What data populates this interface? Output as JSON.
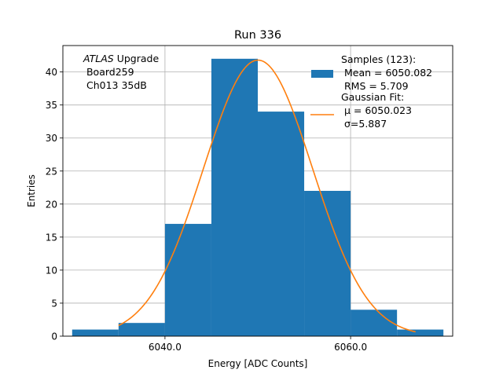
{
  "chart_data": {
    "type": "bar",
    "title": "Run 336",
    "xlabel": "Energy [ADC Counts]",
    "ylabel": "Entries",
    "xlim": [
      6029.0,
      6071.0
    ],
    "ylim": [
      0,
      44
    ],
    "grid": true,
    "x_ticks": [
      6040.0,
      6060.0
    ],
    "x_tick_labels": [
      "6040.0",
      "6060.0"
    ],
    "y_ticks": [
      0,
      5,
      10,
      15,
      20,
      25,
      30,
      35,
      40
    ],
    "y_tick_labels": [
      "0",
      "5",
      "10",
      "15",
      "20",
      "25",
      "30",
      "35",
      "40"
    ],
    "bins": [
      {
        "x0": 6030,
        "x1": 6035,
        "count": 1
      },
      {
        "x0": 6035,
        "x1": 6040,
        "count": 2
      },
      {
        "x0": 6040,
        "x1": 6045,
        "count": 17
      },
      {
        "x0": 6045,
        "x1": 6050,
        "count": 42
      },
      {
        "x0": 6050,
        "x1": 6055,
        "count": 34
      },
      {
        "x0": 6055,
        "x1": 6060,
        "count": 22
      },
      {
        "x0": 6060,
        "x1": 6065,
        "count": 4
      },
      {
        "x0": 6065,
        "x1": 6070,
        "count": 1
      }
    ],
    "fit": {
      "type": "gaussian",
      "mu": 6050.023,
      "sigma": 5.887,
      "amplitude": 41.8,
      "x_range": [
        6035,
        6067
      ]
    },
    "annotation_lines": [
      {
        "italic": "ATLAS",
        "rest": " Upgrade"
      },
      {
        "italic": "",
        "rest": " Board259"
      },
      {
        "italic": "",
        "rest": " Ch013 35dB"
      }
    ],
    "legend": {
      "position": "top-right",
      "entries": [
        {
          "kind": "patch",
          "lines": [
            "Samples (123):",
            " Mean = 6050.082",
            " RMS = 5.709"
          ]
        },
        {
          "kind": "line",
          "lines": [
            "Gaussian Fit:",
            " μ = 6050.023",
            " σ=5.887"
          ]
        }
      ]
    },
    "colors": {
      "bar": "#1f77b4",
      "fit": "#ff7f0e",
      "grid": "#b0b0b0"
    }
  }
}
